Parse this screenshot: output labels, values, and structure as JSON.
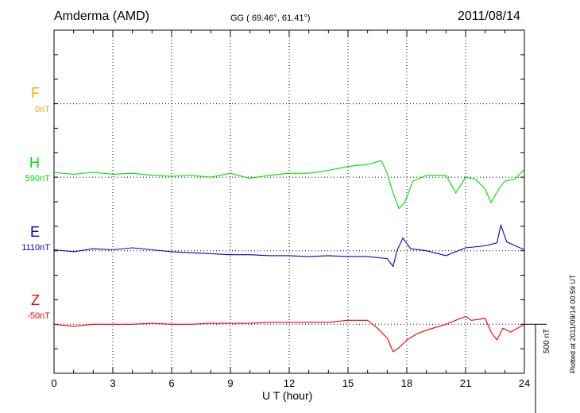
{
  "header": {
    "station": "Amderma (AMD)",
    "coords": "GG ( 69.46°,  61.41°)",
    "date": "2011/08/14"
  },
  "side_note": "Plotted at 2011/09/14 00:59 UT",
  "chart_data": {
    "type": "line",
    "xlabel": "U T (hour)",
    "xlim": [
      0,
      24
    ],
    "x_ticks": [
      0,
      3,
      6,
      9,
      12,
      15,
      18,
      21,
      24
    ],
    "grid": true,
    "scale_bar": {
      "label": "500 nT",
      "value_nT": 500
    },
    "y_range_nT": [
      -500,
      1250
    ],
    "components": [
      {
        "name": "F",
        "baseline": "0nT",
        "color": "#ffa500",
        "offset_nT": 875,
        "points": []
      },
      {
        "name": "H",
        "baseline": "590nT",
        "color": "#00dd00",
        "offset_nT": 500,
        "points": [
          [
            0,
            25
          ],
          [
            1,
            15
          ],
          [
            2,
            25
          ],
          [
            3,
            15
          ],
          [
            4,
            20
          ],
          [
            5,
            10
          ],
          [
            6,
            5
          ],
          [
            7,
            10
          ],
          [
            8,
            0
          ],
          [
            9,
            20
          ],
          [
            10,
            -5
          ],
          [
            11,
            10
          ],
          [
            12,
            20
          ],
          [
            13,
            20
          ],
          [
            14,
            35
          ],
          [
            15,
            55
          ],
          [
            16,
            65
          ],
          [
            16.7,
            85
          ],
          [
            17,
            20
          ],
          [
            17.3,
            -80
          ],
          [
            17.6,
            -160
          ],
          [
            17.9,
            -130
          ],
          [
            18.3,
            -20
          ],
          [
            19,
            10
          ],
          [
            20,
            10
          ],
          [
            20.5,
            -80
          ],
          [
            21,
            0
          ],
          [
            21.5,
            -10
          ],
          [
            22,
            -60
          ],
          [
            22.3,
            -130
          ],
          [
            22.7,
            -60
          ],
          [
            23,
            -20
          ],
          [
            23.5,
            -10
          ],
          [
            24,
            40
          ]
        ]
      },
      {
        "name": "E",
        "baseline": "1110nT",
        "color": "#0000cc",
        "offset_nT": 125,
        "points": [
          [
            0,
            5
          ],
          [
            1,
            -5
          ],
          [
            2,
            10
          ],
          [
            3,
            5
          ],
          [
            4,
            15
          ],
          [
            5,
            5
          ],
          [
            6,
            -5
          ],
          [
            7,
            -10
          ],
          [
            8,
            -15
          ],
          [
            9,
            -20
          ],
          [
            10,
            -20
          ],
          [
            11,
            -25
          ],
          [
            12,
            -25
          ],
          [
            13,
            -30
          ],
          [
            14,
            -25
          ],
          [
            15,
            -30
          ],
          [
            16,
            -30
          ],
          [
            17,
            -40
          ],
          [
            17.3,
            -80
          ],
          [
            17.5,
            0
          ],
          [
            17.8,
            65
          ],
          [
            18.2,
            10
          ],
          [
            19,
            0
          ],
          [
            20,
            -25
          ],
          [
            21,
            15
          ],
          [
            22,
            25
          ],
          [
            22.6,
            40
          ],
          [
            22.8,
            130
          ],
          [
            23.1,
            45
          ],
          [
            24,
            5
          ]
        ]
      },
      {
        "name": "Z",
        "baseline": "-50nT",
        "color": "#ee0000",
        "offset_nT": -250,
        "points": [
          [
            0,
            0
          ],
          [
            1,
            -10
          ],
          [
            2,
            0
          ],
          [
            3,
            0
          ],
          [
            4,
            0
          ],
          [
            5,
            5
          ],
          [
            6,
            0
          ],
          [
            7,
            0
          ],
          [
            8,
            5
          ],
          [
            9,
            5
          ],
          [
            10,
            5
          ],
          [
            11,
            10
          ],
          [
            12,
            10
          ],
          [
            13,
            10
          ],
          [
            14,
            10
          ],
          [
            15,
            20
          ],
          [
            16,
            20
          ],
          [
            16.5,
            -20
          ],
          [
            17,
            -70
          ],
          [
            17.3,
            -140
          ],
          [
            17.6,
            -120
          ],
          [
            18,
            -80
          ],
          [
            18.5,
            -50
          ],
          [
            19,
            -30
          ],
          [
            20,
            0
          ],
          [
            20.5,
            20
          ],
          [
            21,
            40
          ],
          [
            21.3,
            20
          ],
          [
            22,
            30
          ],
          [
            22.3,
            -40
          ],
          [
            22.6,
            -80
          ],
          [
            22.9,
            -20
          ],
          [
            23.3,
            -40
          ],
          [
            24,
            0
          ]
        ]
      }
    ]
  }
}
